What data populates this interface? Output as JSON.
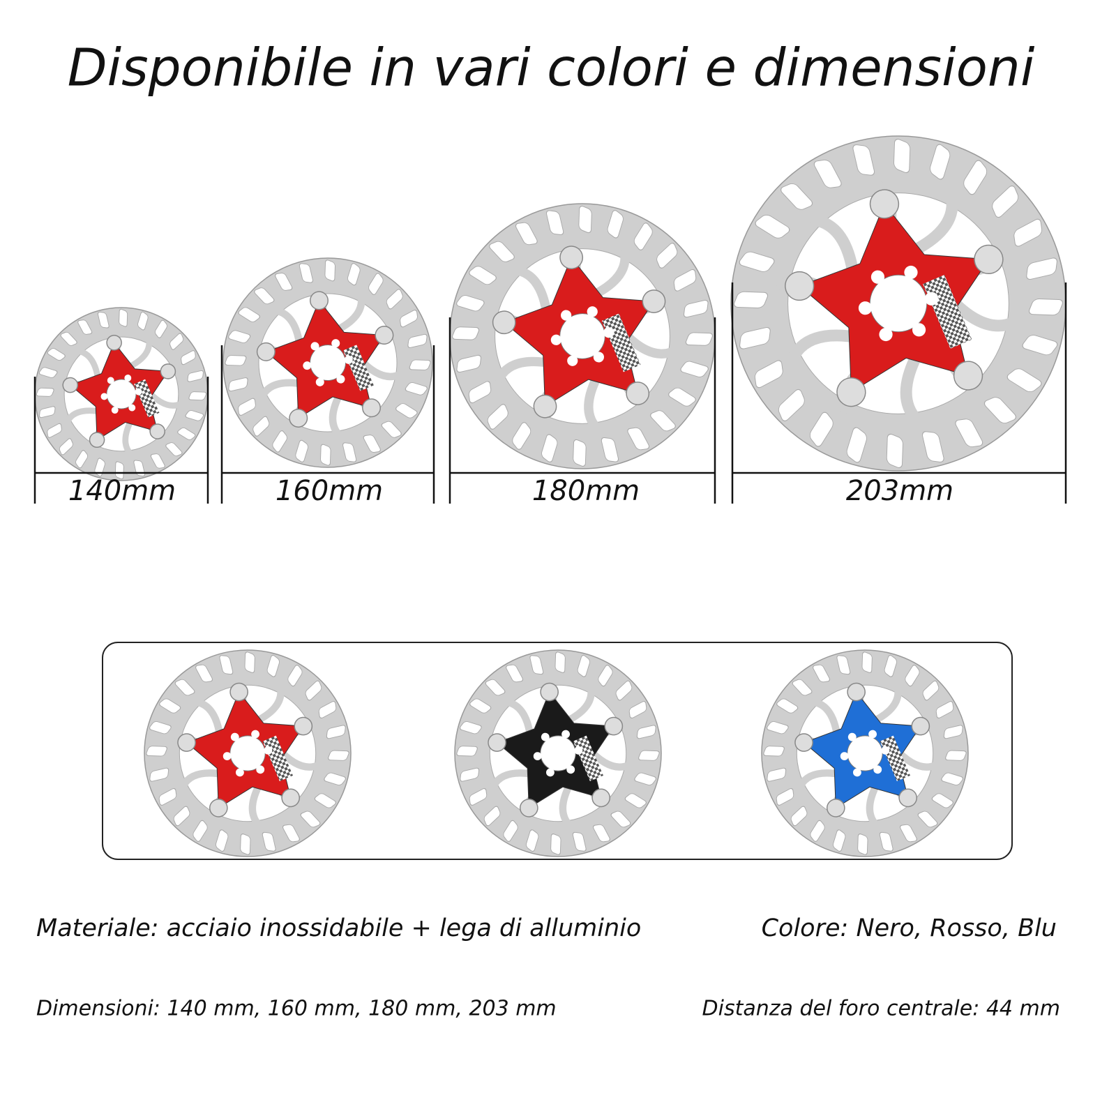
{
  "title": "Disponibile in vari colori e dimensioni",
  "sizes": [
    "140mm",
    "160mm",
    "180mm",
    "203mm"
  ],
  "specs": {
    "material": "Materiale: acciaio inossidabile + lega di alluminio",
    "colors": "Colore: Nero, Rosso, Blu",
    "dimensions": "Dimensioni:  140 mm, 160 mm, 180 mm, 203 mm",
    "hole_distance": "Distanza del foro centrale:  44 mm"
  }
}
